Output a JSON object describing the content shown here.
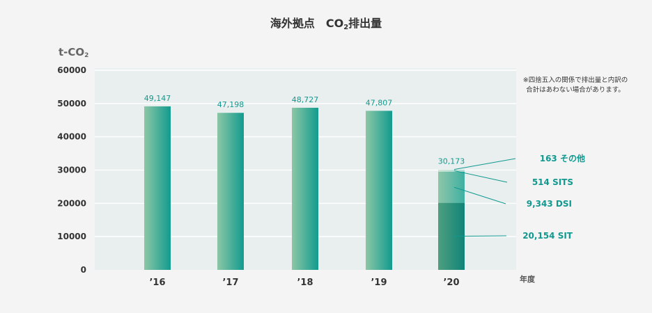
{
  "chart_data": {
    "type": "bar",
    "title_main": "海外拠点　CO",
    "title_sub": "2",
    "title_tail": "排出量",
    "unit_main": "t-CO",
    "unit_sub": "2",
    "xlabel": "年度",
    "ylim": [
      0,
      60000
    ],
    "yticks": [
      0,
      10000,
      20000,
      30000,
      40000,
      50000,
      60000
    ],
    "categories": [
      "’16",
      "’17",
      "’18",
      "’19",
      "’20"
    ],
    "values": [
      49147,
      47198,
      48727,
      47807,
      30173
    ],
    "value_labels": [
      "49,147",
      "47,198",
      "48,727",
      "47,807",
      "30,173"
    ],
    "breakdown": [
      {
        "value": 20154,
        "value_label": "20,154",
        "name": "SIT"
      },
      {
        "value": 9343,
        "value_label": "9,343",
        "name": "DSI"
      },
      {
        "value": 514,
        "value_label": "514",
        "name": "SITS"
      },
      {
        "value": 163,
        "value_label": "163",
        "name": "その他"
      }
    ],
    "note_lines": [
      "※四捨五入の関係で排出量と内訳の",
      "合計はあわない場合があります。"
    ],
    "colors": {
      "bar_left": "#8cc7a6",
      "bar_right": "#119b8e",
      "plot_bg": "#e8efee",
      "grid": "#ffffff",
      "accent": "#11998f"
    }
  }
}
